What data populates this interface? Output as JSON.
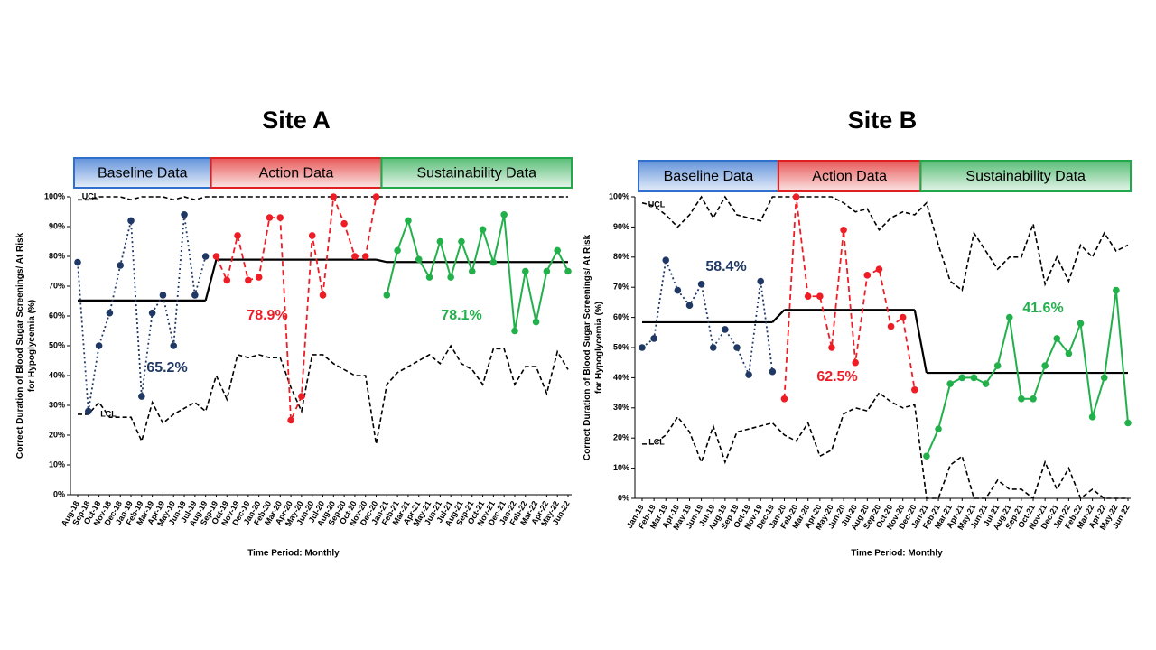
{
  "chart_data": [
    {
      "type": "line",
      "title": "Site A",
      "ylabel": [
        "Correct Duration of Blood Sugar Screenings/ At Risk",
        "for Hypoglycemia (%)"
      ],
      "xlabel": "Time Period: Monthly",
      "categories": [
        "Aug-18",
        "Sep-18",
        "Oct-18",
        "Nov-18",
        "Dec-18",
        "Jan-19",
        "Feb-19",
        "Mar-19",
        "Apr-19",
        "May-19",
        "Jun-19",
        "Jul-19",
        "Aug-19",
        "Sep-19",
        "Oct-19",
        "Nov-19",
        "Dec-19",
        "Jan-20",
        "Feb-20",
        "Mar-20",
        "Apr-20",
        "May-20",
        "Jun-20",
        "Jul-20",
        "Aug-20",
        "Sep-20",
        "Oct-20",
        "Nov-20",
        "Dec-20",
        "Jan-21",
        "Feb-21",
        "Mar-21",
        "Apr-21",
        "May-21",
        "Jun-21",
        "Jul-21",
        "Aug-21",
        "Sep-21",
        "Oct-21",
        "Nov-21",
        "Dec-21",
        "Jan-22",
        "Feb-22",
        "Mar-22",
        "Apr-22",
        "May-22",
        "Jun-22"
      ],
      "ylim": [
        0,
        100
      ],
      "yticks": [
        {
          "value": 0,
          "label": "0%"
        },
        {
          "value": 10,
          "label": "10%"
        },
        {
          "value": 20,
          "label": "20%"
        },
        {
          "value": 30,
          "label": "30%"
        },
        {
          "value": 40,
          "label": "40%"
        },
        {
          "value": 50,
          "label": "50%"
        },
        {
          "value": 60,
          "label": "60%"
        },
        {
          "value": 70,
          "label": "70%"
        },
        {
          "value": 80,
          "label": "80%"
        },
        {
          "value": 90,
          "label": "90%"
        },
        {
          "value": 100,
          "label": "100%"
        }
      ],
      "series": [
        {
          "name": "Baseline Data",
          "color": "#1f3864",
          "banner_color": "#2f6fce",
          "dash": "dotted",
          "mean": 65.2,
          "mean_label": "65.2%",
          "values": [
            78,
            28,
            50,
            61,
            77,
            92,
            33,
            61,
            67,
            50,
            94,
            67,
            80,
            null,
            null,
            null,
            null,
            null,
            null,
            null,
            null,
            null,
            null,
            null,
            null,
            null,
            null,
            null,
            null,
            null,
            null,
            null,
            null,
            null,
            null,
            null,
            null,
            null,
            null,
            null,
            null,
            null,
            null,
            null,
            null,
            null,
            null
          ]
        },
        {
          "name": "Action Data",
          "color": "#ee1c25",
          "banner_color": "#e02020",
          "dash": "dashed",
          "mean": 78.9,
          "mean_label": "78.9%",
          "values": [
            null,
            null,
            null,
            null,
            null,
            null,
            null,
            null,
            null,
            null,
            null,
            null,
            null,
            80,
            72,
            87,
            72,
            73,
            93,
            93,
            25,
            33,
            87,
            67,
            100,
            91,
            80,
            80,
            100,
            null,
            null,
            null,
            null,
            null,
            null,
            null,
            null,
            null,
            null,
            null,
            null,
            null,
            null,
            null,
            null,
            null,
            null
          ]
        },
        {
          "name": "Sustainability Data",
          "color": "#22b04b",
          "banner_color": "#22a84a",
          "dash": "solid",
          "mean": 78.1,
          "mean_label": "78.1%",
          "values": [
            null,
            null,
            null,
            null,
            null,
            null,
            null,
            null,
            null,
            null,
            null,
            null,
            null,
            null,
            null,
            null,
            null,
            null,
            null,
            null,
            null,
            null,
            null,
            null,
            null,
            null,
            null,
            null,
            null,
            67,
            82,
            92,
            79,
            73,
            85,
            73,
            85,
            75,
            89,
            78,
            94,
            55,
            75,
            58,
            75,
            82,
            75
          ]
        }
      ],
      "ucl": {
        "label": "UCL",
        "values": [
          99,
          99,
          100,
          100,
          100,
          99,
          100,
          100,
          100,
          99,
          100,
          99,
          100,
          100,
          100,
          100,
          100,
          100,
          100,
          100,
          100,
          100,
          100,
          100,
          100,
          100,
          100,
          100,
          100,
          100,
          100,
          100,
          100,
          100,
          100,
          100,
          100,
          100,
          100,
          100,
          100,
          100,
          100,
          100,
          100,
          100,
          100
        ]
      },
      "lcl": {
        "label": "LCL",
        "values": [
          27,
          27,
          31,
          26,
          26,
          26,
          18,
          31,
          24,
          27,
          29,
          31,
          28,
          40,
          32,
          47,
          46,
          47,
          46,
          46,
          36,
          28,
          47,
          47,
          44,
          42,
          40,
          40,
          17,
          37,
          41,
          43,
          45,
          47,
          44,
          50,
          44,
          42,
          37,
          49,
          49,
          37,
          43,
          43,
          34,
          48,
          42
        ]
      }
    },
    {
      "type": "line",
      "title": "Site B",
      "ylabel": [
        "Correct Duration of Blood Sugar Screenings/ At Risk",
        "for Hypoglycemia (%)"
      ],
      "xlabel": "Time Period: Monthly",
      "categories": [
        "Jan-19",
        "Feb-19",
        "Mar-19",
        "Apr-19",
        "May-19",
        "Jun-19",
        "Jul-19",
        "Aug-19",
        "Sep-19",
        "Oct-19",
        "Nov-19",
        "Dec-19",
        "Jan-20",
        "Feb-20",
        "Mar-20",
        "Apr-20",
        "May-20",
        "Jun-20",
        "Jul-20",
        "Aug-20",
        "Sep-20",
        "Oct-20",
        "Nov-20",
        "Dec-20",
        "Jan-21",
        "Feb-21",
        "Mar-21",
        "Apr-21",
        "May-21",
        "Jun-21",
        "Jul-21",
        "Aug-21",
        "Sep-21",
        "Oct-21",
        "Nov-21",
        "Dec-21",
        "Jan-22",
        "Feb-22",
        "Mar-22",
        "Apr-22",
        "May-22",
        "Jun-22"
      ],
      "ylim": [
        0,
        100
      ],
      "yticks": [
        {
          "value": 0,
          "label": "0%"
        },
        {
          "value": 10,
          "label": "10%"
        },
        {
          "value": 20,
          "label": "20%"
        },
        {
          "value": 30,
          "label": "30%"
        },
        {
          "value": 40,
          "label": "40%"
        },
        {
          "value": 50,
          "label": "50%"
        },
        {
          "value": 60,
          "label": "60%"
        },
        {
          "value": 70,
          "label": "70%"
        },
        {
          "value": 80,
          "label": "80%"
        },
        {
          "value": 90,
          "label": "90%"
        },
        {
          "value": 100,
          "label": "100%"
        }
      ],
      "series": [
        {
          "name": "Baseline Data",
          "color": "#1f3864",
          "banner_color": "#2f6fce",
          "dash": "dotted",
          "mean": 58.4,
          "mean_label": "58.4%",
          "values": [
            50,
            53,
            79,
            69,
            64,
            71,
            50,
            56,
            50,
            41,
            72,
            42,
            null,
            null,
            null,
            null,
            null,
            null,
            null,
            null,
            null,
            null,
            null,
            null,
            null,
            null,
            null,
            null,
            null,
            null,
            null,
            null,
            null,
            null,
            null,
            null,
            null,
            null,
            null,
            null,
            null,
            null
          ]
        },
        {
          "name": "Action Data",
          "color": "#ee1c25",
          "banner_color": "#e02020",
          "dash": "dashed",
          "mean": 62.5,
          "mean_label": "62.5%",
          "values": [
            null,
            null,
            null,
            null,
            null,
            null,
            null,
            null,
            null,
            null,
            null,
            null,
            33,
            100,
            67,
            67,
            50,
            89,
            45,
            74,
            76,
            57,
            60,
            36,
            null,
            null,
            null,
            null,
            null,
            null,
            null,
            null,
            null,
            null,
            null,
            null,
            null,
            null,
            null,
            null,
            null,
            null
          ]
        },
        {
          "name": "Sustainability Data",
          "color": "#22b04b",
          "banner_color": "#22a84a",
          "dash": "solid",
          "mean": 41.6,
          "mean_label": "41.6%",
          "values": [
            null,
            null,
            null,
            null,
            null,
            null,
            null,
            null,
            null,
            null,
            null,
            null,
            null,
            null,
            null,
            null,
            null,
            null,
            null,
            null,
            null,
            null,
            null,
            null,
            14,
            23,
            38,
            40,
            40,
            38,
            44,
            60,
            33,
            33,
            44,
            53,
            48,
            58,
            27,
            40,
            69,
            25
          ]
        }
      ],
      "ucl": {
        "label": "UCL",
        "values": [
          98,
          97,
          94,
          90,
          94,
          100,
          93,
          100,
          94,
          93,
          92,
          100,
          100,
          100,
          100,
          100,
          100,
          98,
          95,
          96,
          89,
          93,
          95,
          94,
          98,
          84,
          72,
          69,
          88,
          82,
          76,
          80,
          80,
          91,
          71,
          80,
          72,
          84,
          80,
          88,
          82,
          84
        ]
      },
      "lcl": {
        "label": "LCL",
        "values": [
          18,
          18,
          21,
          27,
          22,
          12,
          24,
          12,
          22,
          23,
          24,
          25,
          21,
          19,
          25,
          14,
          16,
          28,
          30,
          29,
          35,
          32,
          30,
          31,
          0,
          0,
          11,
          14,
          0,
          0,
          6,
          3,
          3,
          0,
          12,
          3,
          10,
          0,
          3,
          0,
          0,
          0
        ]
      }
    }
  ]
}
